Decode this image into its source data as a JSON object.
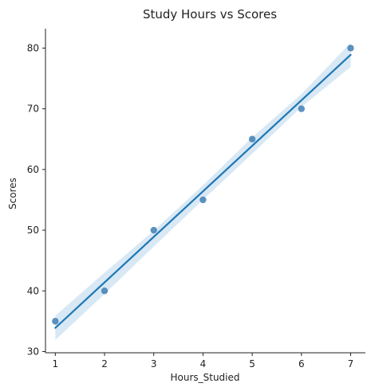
{
  "chart_data": {
    "type": "scatter",
    "title": "Study Hours vs Scores",
    "xlabel": "Hours_Studied",
    "ylabel": "Scores",
    "xlim": [
      0.8,
      7.3
    ],
    "ylim": [
      29.8,
      83.2
    ],
    "x_ticks": [
      "1",
      "2",
      "3",
      "4",
      "5",
      "6",
      "7"
    ],
    "y_ticks": [
      "30",
      "40",
      "50",
      "60",
      "70",
      "80"
    ],
    "x": [
      1,
      2,
      3,
      4,
      5,
      6,
      7
    ],
    "y": [
      35,
      40,
      50,
      55,
      65,
      70,
      80
    ],
    "regression_line": {
      "x": [
        1,
        7
      ],
      "y": [
        33.9,
        78.9
      ]
    },
    "confidence_band": {
      "x": [
        1,
        2,
        3,
        4,
        5,
        6,
        7
      ],
      "lower": [
        31.9,
        39.5,
        47.3,
        55.0,
        62.6,
        70.3,
        76.9
      ],
      "upper": [
        35.9,
        43.0,
        49.9,
        57.4,
        65.3,
        72.4,
        80.9
      ]
    },
    "grid": false,
    "spines": "left-bottom",
    "colors": {
      "point": "#3f7fb3",
      "line": "#1f77b4",
      "band": "#a9cde6",
      "axis": "#222222"
    }
  }
}
